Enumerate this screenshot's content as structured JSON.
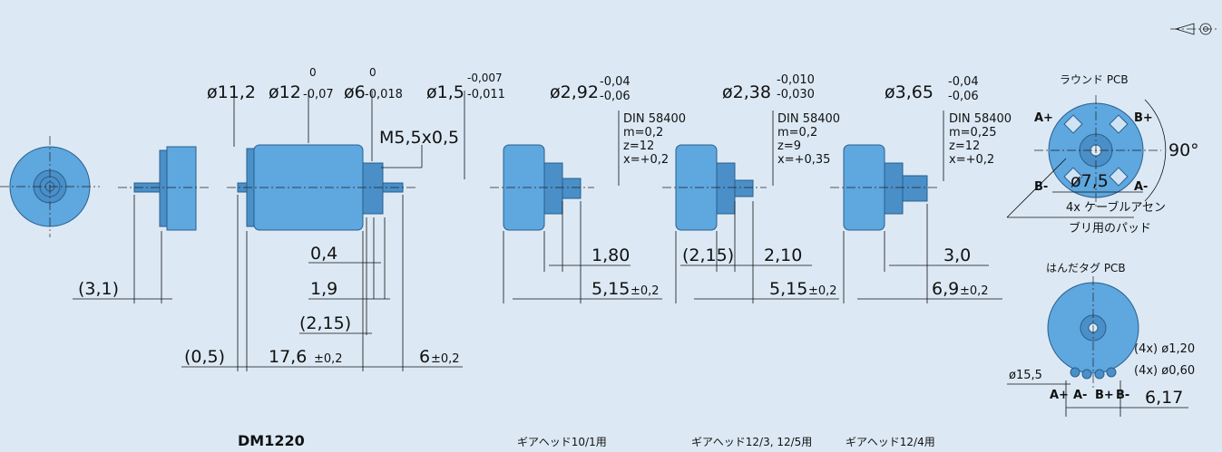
{
  "main_view": {
    "title": "DM1220",
    "diameters": [
      {
        "label": "ø11,2"
      },
      {
        "label": "ø12",
        "tol_upper": "0",
        "tol_lower": "-0,07"
      },
      {
        "label": "ø6",
        "tol_upper": "0",
        "tol_lower": "-0,018"
      },
      {
        "label": "ø1,5",
        "tol_upper": "-0,007",
        "tol_lower": "-0,011"
      }
    ],
    "thread": "M5,5x0,5",
    "dimensions": [
      "(3,1)",
      "0,4",
      "1,9",
      "(2,15)",
      "(0,5)",
      "17,6",
      "±0,2",
      "6",
      "±0,2"
    ]
  },
  "gearheads": [
    {
      "diameter": "ø2,92",
      "tol_upper": "-0,04",
      "tol_lower": "-0,06",
      "spec": [
        "DIN 58400",
        "m=0,2",
        "z=12",
        "x=+0,2"
      ],
      "dim_short": "1,80",
      "dim_long": "5,15",
      "dim_long_tol": "±0,2",
      "caption": "ギアヘッド10/1用"
    },
    {
      "diameter": "ø2,38",
      "tol_upper": "-0,010",
      "tol_lower": "-0,030",
      "spec": [
        "DIN 58400",
        "m=0,2",
        "z=9",
        "x=+0,35"
      ],
      "dim_extra": "(2,15)",
      "dim_short": "2,10",
      "dim_long": "5,15",
      "dim_long_tol": "±0,2",
      "caption": "ギアヘッド12/3, 12/5用"
    },
    {
      "diameter": "ø3,65",
      "tol_upper": "-0,04",
      "tol_lower": "-0,06",
      "spec": [
        "DIN 58400",
        "m=0,25",
        "z=12",
        "x=+0,2"
      ],
      "dim_short": "3,0",
      "dim_long": "6,9",
      "dim_long_tol": "±0,2",
      "caption": "ギアヘッド12/4用"
    }
  ],
  "round_pcb": {
    "title": "ラウンド PCB",
    "pins": [
      "A+",
      "B+",
      "B-",
      "A-"
    ],
    "angle": "90°",
    "diameter": "ø7,5",
    "note": [
      "4x ケーブルアセン",
      "ブリ用のパッド"
    ]
  },
  "solder_pcb": {
    "title": "はんだタグ PCB",
    "holes": [
      "(4x) ø1,20",
      "(4x) ø0,60"
    ],
    "diameter": "ø15,5",
    "pins": [
      "A+",
      "A-",
      "B+",
      "B-"
    ],
    "width": "6,17"
  }
}
